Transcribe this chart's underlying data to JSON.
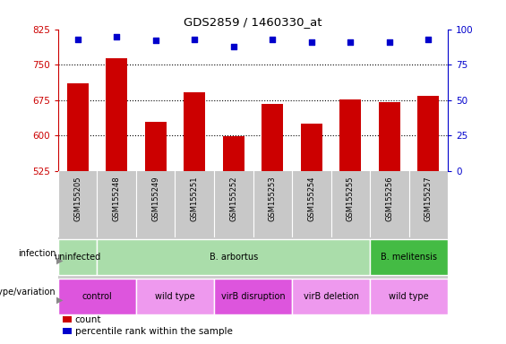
{
  "title": "GDS2859 / 1460330_at",
  "samples": [
    "GSM155205",
    "GSM155248",
    "GSM155249",
    "GSM155251",
    "GSM155252",
    "GSM155253",
    "GSM155254",
    "GSM155255",
    "GSM155256",
    "GSM155257"
  ],
  "counts": [
    710,
    763,
    628,
    692,
    599,
    666,
    626,
    677,
    670,
    684
  ],
  "percentile_ranks": [
    93,
    95,
    92,
    93,
    88,
    93,
    91,
    91,
    91,
    93
  ],
  "ylim_left": [
    525,
    825
  ],
  "yticks_left": [
    525,
    600,
    675,
    750,
    825
  ],
  "yticks_right": [
    0,
    25,
    50,
    75,
    100
  ],
  "bar_color": "#CC0000",
  "dot_color": "#0000CC",
  "infection_groups": [
    {
      "label": "uninfected",
      "start": 0,
      "end": 1,
      "color": "#AADDAA"
    },
    {
      "label": "B. arbortus",
      "start": 1,
      "end": 8,
      "color": "#AADDAA"
    },
    {
      "label": "B. melitensis",
      "start": 8,
      "end": 10,
      "color": "#44BB44"
    }
  ],
  "genotype_groups": [
    {
      "label": "control",
      "start": 0,
      "end": 2,
      "color": "#DD55DD"
    },
    {
      "label": "wild type",
      "start": 2,
      "end": 4,
      "color": "#EE99EE"
    },
    {
      "label": "virB disruption",
      "start": 4,
      "end": 6,
      "color": "#DD55DD"
    },
    {
      "label": "virB deletion",
      "start": 6,
      "end": 8,
      "color": "#EE99EE"
    },
    {
      "label": "wild type",
      "start": 8,
      "end": 10,
      "color": "#EE99EE"
    }
  ],
  "tick_color_left": "#CC0000",
  "tick_color_right": "#0000CC",
  "table_bg": "#C8C8C8",
  "grid_dotted_at": [
    600,
    675,
    750
  ]
}
